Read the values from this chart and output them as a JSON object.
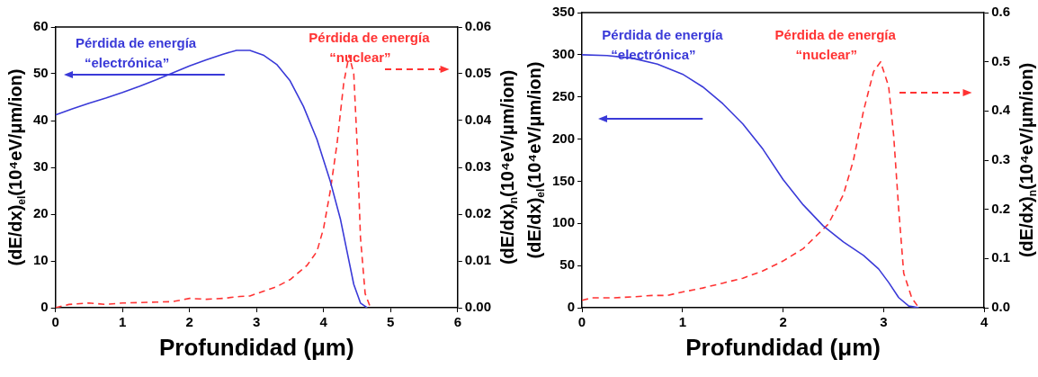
{
  "chart_data": [
    {
      "type": "line",
      "xlabel": "Profundidad (μm)",
      "ylabel": "(dE/dx)$_{el}$(10⁴eV/μm/ion)",
      "y2label": "(dE/dx)$_{n}$(10⁴eV/μm/ion)",
      "xlim": [
        0,
        6
      ],
      "xticks": [
        0,
        1,
        2,
        3,
        4,
        5,
        6
      ],
      "ylim": [
        0,
        60
      ],
      "yticks": [
        0,
        10,
        20,
        30,
        40,
        50,
        60
      ],
      "y2lim": [
        0,
        0.06
      ],
      "y2ticks": [
        {
          "value": 0,
          "label": "0.00"
        },
        0.01,
        0.02,
        0.03,
        0.04,
        0.05,
        0.06
      ],
      "grid": false,
      "legend": false,
      "marker": "none",
      "series": [
        {
          "name": "Pérdida de energía “electrónica”",
          "color": "#3a3ad8",
          "line_style": "solid",
          "x": [
            0,
            0.25,
            0.5,
            0.75,
            1,
            1.25,
            1.5,
            1.75,
            2,
            2.25,
            2.5,
            2.7,
            2.9,
            3.1,
            3.3,
            3.5,
            3.7,
            3.9,
            4.1,
            4.25,
            4.35,
            4.45,
            4.55,
            4.65
          ],
          "values": [
            41.2,
            42.5,
            43.7,
            44.8,
            46,
            47.3,
            48.7,
            50.2,
            51.7,
            53,
            54.2,
            55,
            55,
            54,
            52,
            48.5,
            43,
            36,
            27,
            19,
            12,
            5,
            1,
            0
          ]
        },
        {
          "name": "Pérdida de energía “nuclear”",
          "color": "#ff3333",
          "line_style": "dashed",
          "axis": "y2",
          "x": [
            0,
            0.2,
            0.5,
            0.75,
            1,
            1.5,
            1.75,
            2,
            2.25,
            2.5,
            2.75,
            2.9,
            3.1,
            3.3,
            3.5,
            3.75,
            3.9,
            4,
            4.1,
            4.2,
            4.3,
            4.38,
            4.45,
            4.5,
            4.55,
            4.62,
            4.7
          ],
          "values": [
            0,
            0.0007,
            0.001,
            0.0007,
            0.001,
            0.0012,
            0.0013,
            0.002,
            0.0018,
            0.002,
            0.0024,
            0.0025,
            0.0035,
            0.0045,
            0.006,
            0.009,
            0.012,
            0.017,
            0.025,
            0.035,
            0.048,
            0.054,
            0.05,
            0.035,
            0.015,
            0.003,
            0
          ]
        }
      ]
    },
    {
      "type": "line",
      "xlabel": "Profundidad (μm)",
      "ylabel": "(dE/dx)$_{el}$(10⁴eV/μm/ion)",
      "y2label": "(dE/dx)$_{n}$(10⁴eV/μm/ion)",
      "xlim": [
        0,
        4
      ],
      "xticks": [
        0,
        1,
        2,
        3,
        4
      ],
      "ylim": [
        0,
        350
      ],
      "yticks": [
        0,
        50,
        100,
        150,
        200,
        250,
        300,
        350
      ],
      "y2lim": [
        0,
        0.6
      ],
      "y2ticks": [
        {
          "value": 0,
          "label": "0.0"
        },
        0.1,
        0.2,
        0.3,
        0.4,
        0.5,
        0.6
      ],
      "grid": false,
      "legend": false,
      "marker": "none",
      "series": [
        {
          "name": "Pérdida de energía “electrónica”",
          "color": "#3a3ad8",
          "line_style": "solid",
          "x": [
            0,
            0.25,
            0.5,
            0.75,
            1,
            1.2,
            1.4,
            1.6,
            1.8,
            2,
            2.2,
            2.4,
            2.6,
            2.8,
            2.95,
            3.05,
            3.15,
            3.25,
            3.35
          ],
          "values": [
            300,
            299,
            296,
            289,
            277,
            262,
            242,
            218,
            188,
            152,
            122,
            97,
            78,
            62,
            46,
            30,
            12,
            2,
            0
          ]
        },
        {
          "name": "Pérdida de energía “nuclear”",
          "color": "#ff3333",
          "line_style": "dashed",
          "axis": "y2",
          "x": [
            0,
            0.1,
            0.3,
            0.5,
            0.7,
            0.85,
            1,
            1.2,
            1.4,
            1.6,
            1.8,
            2,
            2.2,
            2.3,
            2.45,
            2.6,
            2.7,
            2.8,
            2.9,
            2.97,
            3.05,
            3.1,
            3.15,
            3.2,
            3.28,
            3.35
          ],
          "values": [
            0.015,
            0.02,
            0.02,
            0.022,
            0.025,
            0.025,
            0.032,
            0.04,
            0.05,
            0.06,
            0.075,
            0.095,
            0.12,
            0.14,
            0.17,
            0.23,
            0.3,
            0.4,
            0.48,
            0.5,
            0.45,
            0.35,
            0.2,
            0.07,
            0.02,
            0
          ]
        }
      ]
    }
  ]
}
